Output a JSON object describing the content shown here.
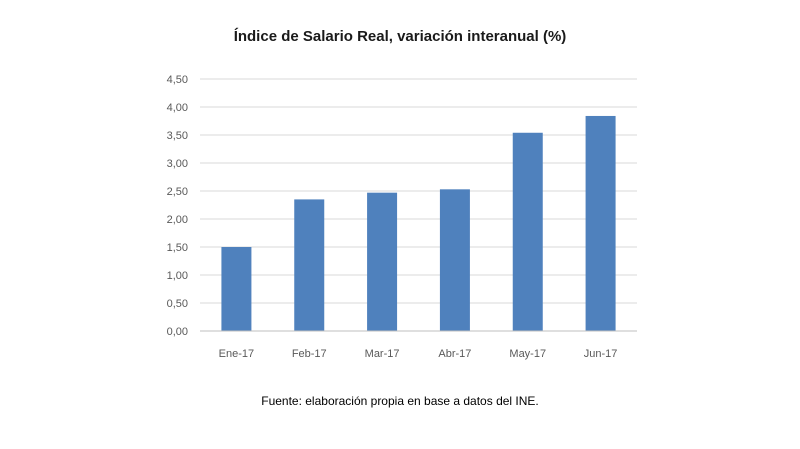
{
  "chart_data": {
    "type": "bar",
    "title": "Índice de Salario Real, variación interanual (%)",
    "categories": [
      "Ene-17",
      "Feb-17",
      "Mar-17",
      "Abr-17",
      "May-17",
      "Jun-17"
    ],
    "values": [
      1.5,
      2.35,
      2.47,
      2.53,
      3.54,
      3.84
    ],
    "y_tick_labels": [
      "0,00",
      "0,50",
      "1,00",
      "1,50",
      "2,00",
      "2,50",
      "3,00",
      "3,50",
      "4,00",
      "4,50"
    ],
    "ylim": [
      0,
      4.5
    ],
    "grid": true,
    "legend": "none",
    "bar_color": "#4f81bd",
    "grid_color": "#d9d9d9"
  },
  "source": "Fuente: elaboración propia en base a datos del INE."
}
